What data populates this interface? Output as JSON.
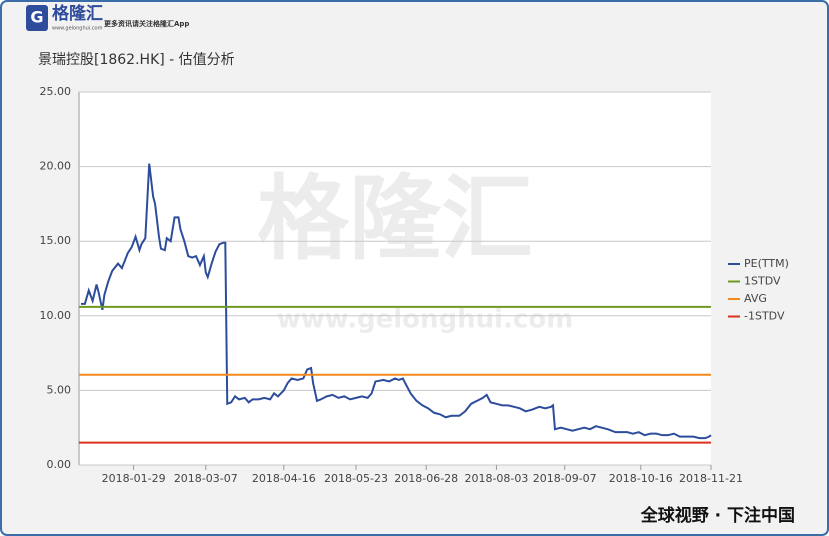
{
  "page": {
    "logo": "格隆汇",
    "logo_site": "www.gelonghui.com",
    "logo_tagline": "更多资讯请关注格隆汇App",
    "watermark": "格隆汇",
    "watermark_site": "www.gelonghui.com",
    "footer": "全球视野 · 下注中国"
  },
  "chart_data": {
    "type": "line",
    "title": "景瑞控股[1862.HK] - 估值分析",
    "x": [
      "2018-01-02",
      "2018-01-04",
      "2018-01-06",
      "2018-01-08",
      "2018-01-10",
      "2018-01-11",
      "2018-01-13",
      "2018-01-14",
      "2018-01-16",
      "2018-01-18",
      "2018-01-21",
      "2018-01-23",
      "2018-01-26",
      "2018-01-28",
      "2018-01-30",
      "2018-02-01",
      "2018-02-02",
      "2018-02-04",
      "2018-02-06",
      "2018-02-08",
      "2018-02-09",
      "2018-02-11",
      "2018-02-12",
      "2018-02-14",
      "2018-02-15",
      "2018-02-17",
      "2018-02-19",
      "2018-02-21",
      "2018-02-22",
      "2018-02-24",
      "2018-02-26",
      "2018-02-28",
      "2018-03-02",
      "2018-03-04",
      "2018-03-06",
      "2018-03-07",
      "2018-03-08",
      "2018-03-10",
      "2018-03-12",
      "2018-03-14",
      "2018-03-16",
      "2018-03-17",
      "2018-03-18",
      "2018-03-20",
      "2018-03-22",
      "2018-03-24",
      "2018-03-27",
      "2018-03-29",
      "2018-03-31",
      "2018-04-03",
      "2018-04-06",
      "2018-04-09",
      "2018-04-11",
      "2018-04-13",
      "2018-04-16",
      "2018-04-18",
      "2018-04-20",
      "2018-04-23",
      "2018-04-26",
      "2018-04-28",
      "2018-04-30",
      "2018-05-01",
      "2018-05-03",
      "2018-05-05",
      "2018-05-08",
      "2018-05-11",
      "2018-05-14",
      "2018-05-17",
      "2018-05-20",
      "2018-05-23",
      "2018-05-26",
      "2018-05-29",
      "2018-05-31",
      "2018-06-02",
      "2018-06-06",
      "2018-06-09",
      "2018-06-12",
      "2018-06-14",
      "2018-06-16",
      "2018-06-18",
      "2018-06-20",
      "2018-06-23",
      "2018-06-26",
      "2018-06-29",
      "2018-07-02",
      "2018-07-05",
      "2018-07-08",
      "2018-07-11",
      "2018-07-15",
      "2018-07-18",
      "2018-07-21",
      "2018-07-24",
      "2018-07-27",
      "2018-07-29",
      "2018-07-31",
      "2018-08-03",
      "2018-08-06",
      "2018-08-09",
      "2018-08-12",
      "2018-08-15",
      "2018-08-18",
      "2018-08-21",
      "2018-08-25",
      "2018-08-28",
      "2018-08-31",
      "2018-09-01",
      "2018-09-02",
      "2018-09-05",
      "2018-09-08",
      "2018-09-11",
      "2018-09-14",
      "2018-09-17",
      "2018-09-20",
      "2018-09-23",
      "2018-09-26",
      "2018-09-29",
      "2018-10-03",
      "2018-10-06",
      "2018-10-09",
      "2018-10-12",
      "2018-10-15",
      "2018-10-18",
      "2018-10-21",
      "2018-10-24",
      "2018-10-27",
      "2018-10-30",
      "2018-11-02",
      "2018-11-05",
      "2018-11-08",
      "2018-11-12",
      "2018-11-15",
      "2018-11-18",
      "2018-11-20",
      "2018-11-21"
    ],
    "series": [
      {
        "name": "PE(TTM)",
        "color": "#2d4d9c",
        "values": [
          10.8,
          10.8,
          11.7,
          11.0,
          12.1,
          11.6,
          10.4,
          11.4,
          12.3,
          13.0,
          13.5,
          13.2,
          14.2,
          14.6,
          15.3,
          14.4,
          14.8,
          15.2,
          20.2,
          18.0,
          17.5,
          15.3,
          14.5,
          14.4,
          15.2,
          15.0,
          16.6,
          16.6,
          15.8,
          15.0,
          14.0,
          13.9,
          14.0,
          13.4,
          14.0,
          12.9,
          12.6,
          13.5,
          14.3,
          14.8,
          14.9,
          14.9,
          4.1,
          4.2,
          4.6,
          4.4,
          4.5,
          4.2,
          4.4,
          4.4,
          4.5,
          4.4,
          4.8,
          4.6,
          5.0,
          5.5,
          5.8,
          5.7,
          5.8,
          6.4,
          6.5,
          5.5,
          4.3,
          4.4,
          4.6,
          4.7,
          4.5,
          4.6,
          4.4,
          4.5,
          4.6,
          4.5,
          4.8,
          5.6,
          5.7,
          5.6,
          5.8,
          5.7,
          5.8,
          5.3,
          4.8,
          4.3,
          4.0,
          3.8,
          3.5,
          3.4,
          3.2,
          3.3,
          3.3,
          3.6,
          4.1,
          4.3,
          4.5,
          4.7,
          4.2,
          4.1,
          4.0,
          4.0,
          3.9,
          3.8,
          3.6,
          3.7,
          3.9,
          3.8,
          3.9,
          4.0,
          2.4,
          2.5,
          2.4,
          2.3,
          2.4,
          2.5,
          2.4,
          2.6,
          2.5,
          2.4,
          2.2,
          2.2,
          2.2,
          2.1,
          2.2,
          2.0,
          2.1,
          2.1,
          2.0,
          2.0,
          2.1,
          1.9,
          1.9,
          1.9,
          1.8,
          1.8,
          1.9,
          2.0
        ]
      },
      {
        "name": "1STDV",
        "color": "#6f9a1f",
        "value": 10.6
      },
      {
        "name": "AVG",
        "color": "#f28a1e",
        "value": 6.05
      },
      {
        "name": "-1STDV",
        "color": "#d9321f",
        "value": 1.5
      }
    ],
    "xlim": [
      "2018-01-01",
      "2018-11-21"
    ],
    "xticks": [
      "2018-01-29",
      "2018-03-07",
      "2018-04-16",
      "2018-05-23",
      "2018-06-28",
      "2018-08-03",
      "2018-09-07",
      "2018-10-16",
      "2018-11-21"
    ],
    "ylim": [
      0,
      25
    ],
    "yticks": [
      {
        "value": 0,
        "label": "0.00"
      },
      {
        "value": 5,
        "label": "5.00"
      },
      {
        "value": 10,
        "label": "10.00"
      },
      {
        "value": 15,
        "label": "15.00"
      },
      {
        "value": 20,
        "label": "20.00"
      },
      {
        "value": 25,
        "label": "25.00"
      }
    ],
    "grid": true,
    "legend": "right"
  }
}
